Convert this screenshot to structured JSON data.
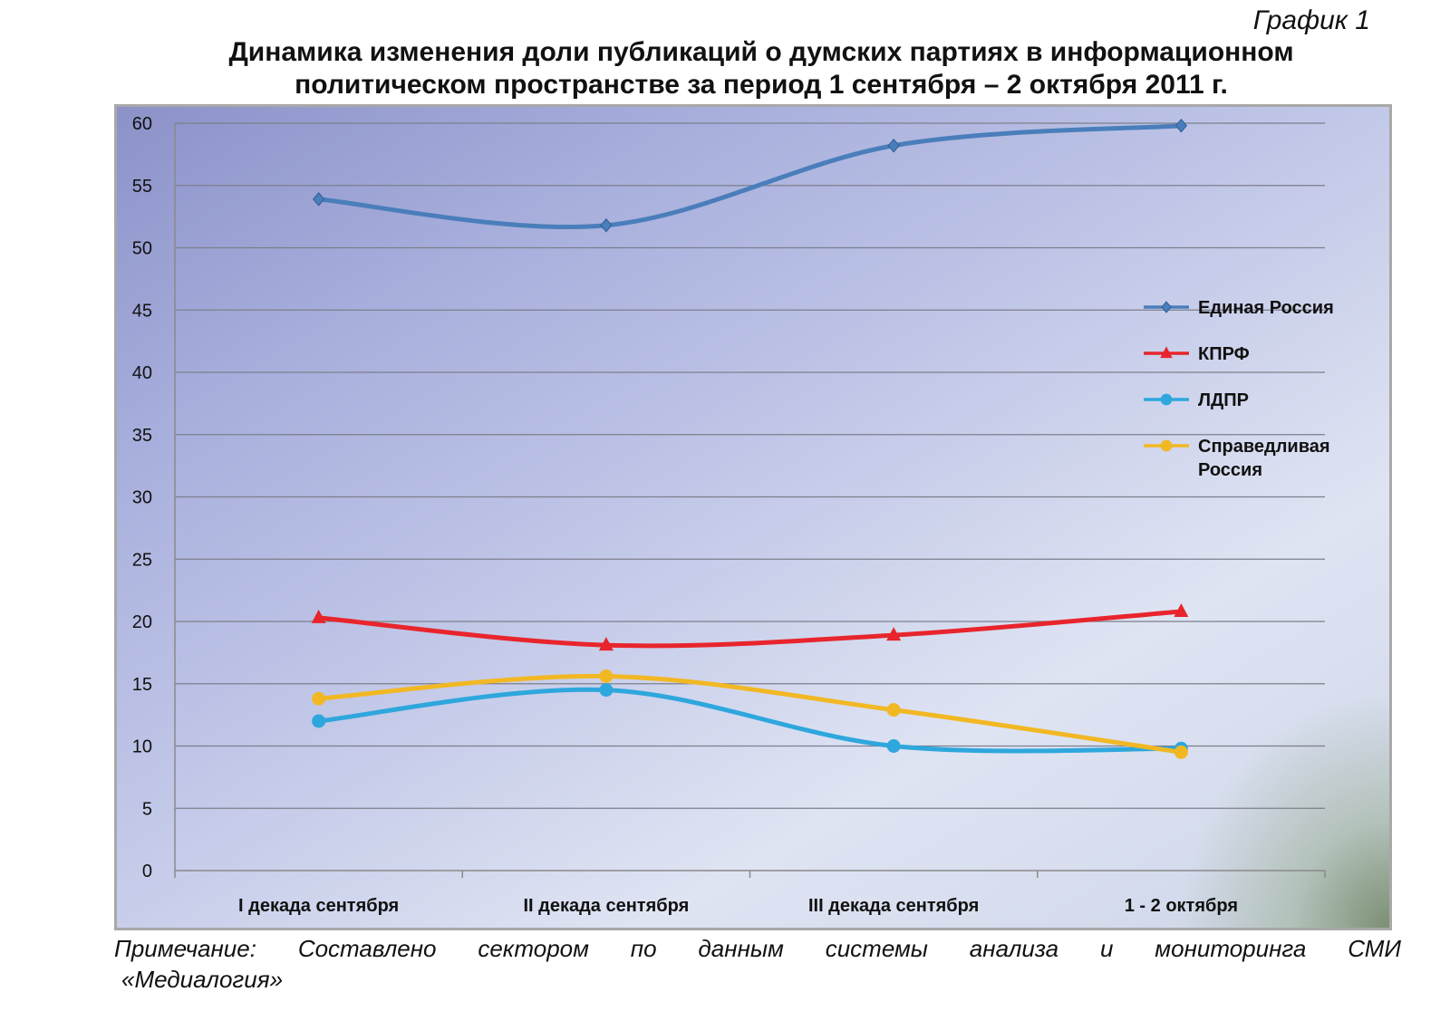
{
  "caption": "График 1",
  "title": {
    "line1": "Динамика изменения доли публикаций о думских партиях в информационном",
    "line2": "политическом пространстве за период 1 сентября – 2 октября 2011 г."
  },
  "note": {
    "line1": "Примечание: Составлено сектором по данным системы анализа и мониторинга СМИ",
    "line2": "«Медиалогия»"
  },
  "chart_data": {
    "type": "line",
    "title": "Динамика изменения доли публикаций о думских партиях в информационном политическом пространстве за период 1 сентября – 2 октября 2011 г.",
    "categories": [
      "I декада сентября",
      "II декада сентября",
      "III декада сентября",
      "1 - 2 октября"
    ],
    "ylim": [
      0,
      60
    ],
    "yticks": [
      0,
      5,
      10,
      15,
      20,
      25,
      30,
      35,
      40,
      45,
      50,
      55,
      60
    ],
    "grid": true,
    "smooth": true,
    "legend_position": "right",
    "series": [
      {
        "name": "Единая Россия",
        "values": [
          53.9,
          51.8,
          58.2,
          59.8
        ],
        "color": "#4a7ebb",
        "marker": "diamond",
        "marker_color": "#4a7ebb"
      },
      {
        "name": "КПРФ",
        "values": [
          20.3,
          18.1,
          18.9,
          20.8
        ],
        "color": "#e8252c",
        "marker": "triangle",
        "marker_color": "#e8252c"
      },
      {
        "name": "ЛДПР",
        "values": [
          12.0,
          14.5,
          10.0,
          9.8
        ],
        "color": "#2ea7dd",
        "marker": "circle",
        "marker_color": "#2ea7dd"
      },
      {
        "name": "Справедливая Россия",
        "values": [
          13.8,
          15.6,
          12.9,
          9.5
        ],
        "color": "#f2b824",
        "marker": "circle",
        "marker_color": "#f2b824"
      }
    ]
  }
}
